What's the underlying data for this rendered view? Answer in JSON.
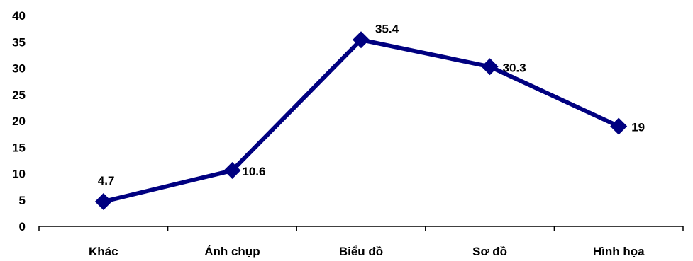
{
  "chart_data": {
    "type": "line",
    "categories": [
      "Khác",
      "Ảnh chụp",
      "Biểu đồ",
      "Sơ đồ",
      "Hình họa"
    ],
    "series": [
      {
        "values": [
          4.7,
          10.6,
          35.4,
          30.3,
          19
        ],
        "labels": [
          "4.7",
          "10.6",
          "35.4",
          "30.3",
          "19"
        ],
        "color": "#000080",
        "marker": "diamond"
      }
    ],
    "y_ticks": [
      "0",
      "5",
      "10",
      "15",
      "20",
      "25",
      "30",
      "35",
      "40"
    ],
    "ylim": [
      0,
      40
    ],
    "title": "",
    "xlabel": "",
    "ylabel": "",
    "grid": false,
    "legend": "none"
  }
}
